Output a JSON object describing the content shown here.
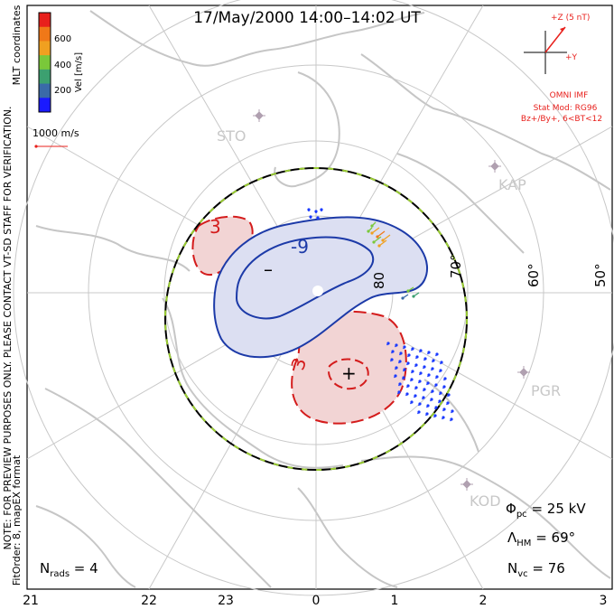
{
  "title": "17/May/2000 14:00–14:02 UT",
  "colorbar": {
    "label": "Vel [m/s]",
    "ticks": [
      "600",
      "400",
      "200"
    ],
    "colors": [
      "#e8201c",
      "#f07818",
      "#f0a020",
      "#7ac83a",
      "#3ca070",
      "#3a6aa8",
      "#1a1aff"
    ]
  },
  "coordinates_label": "MLT coordinates",
  "reference_vector": "1000 m/s",
  "imf": {
    "z_label": "+Z (5 nT)",
    "y_label": "+Y",
    "source": "OMNI IMF",
    "model": "Stat Mod: RG96",
    "conditions": "Bz+/By+, 6<BT<12",
    "color": "#e8201c"
  },
  "notice": "NOTE: FOR PREVIEW PURPOSES ONLY. PLEASE CONTACT VT-SD STAFF FOR VERIFICATION.",
  "fit_info": "FitOrder: 8, mapEX format",
  "stations": [
    "STO",
    "KAP",
    "PGR",
    "KOD"
  ],
  "lat_labels": [
    "80",
    "70°",
    "60°",
    "50°"
  ],
  "contours": {
    "negative_label": "-9",
    "negative_sign": "–",
    "positive_label": "3",
    "positive_label_2": "3",
    "positive_sign": "+",
    "negative_color": "#1c3aa8",
    "positive_color": "#d41c1c"
  },
  "stats": {
    "phi_pc": "25 kV",
    "lambda_hm": "69°",
    "n_vc": "76",
    "n_rads": "4"
  },
  "mlt_axis": [
    "21",
    "22",
    "23",
    "0",
    "1",
    "2",
    "3"
  ]
}
